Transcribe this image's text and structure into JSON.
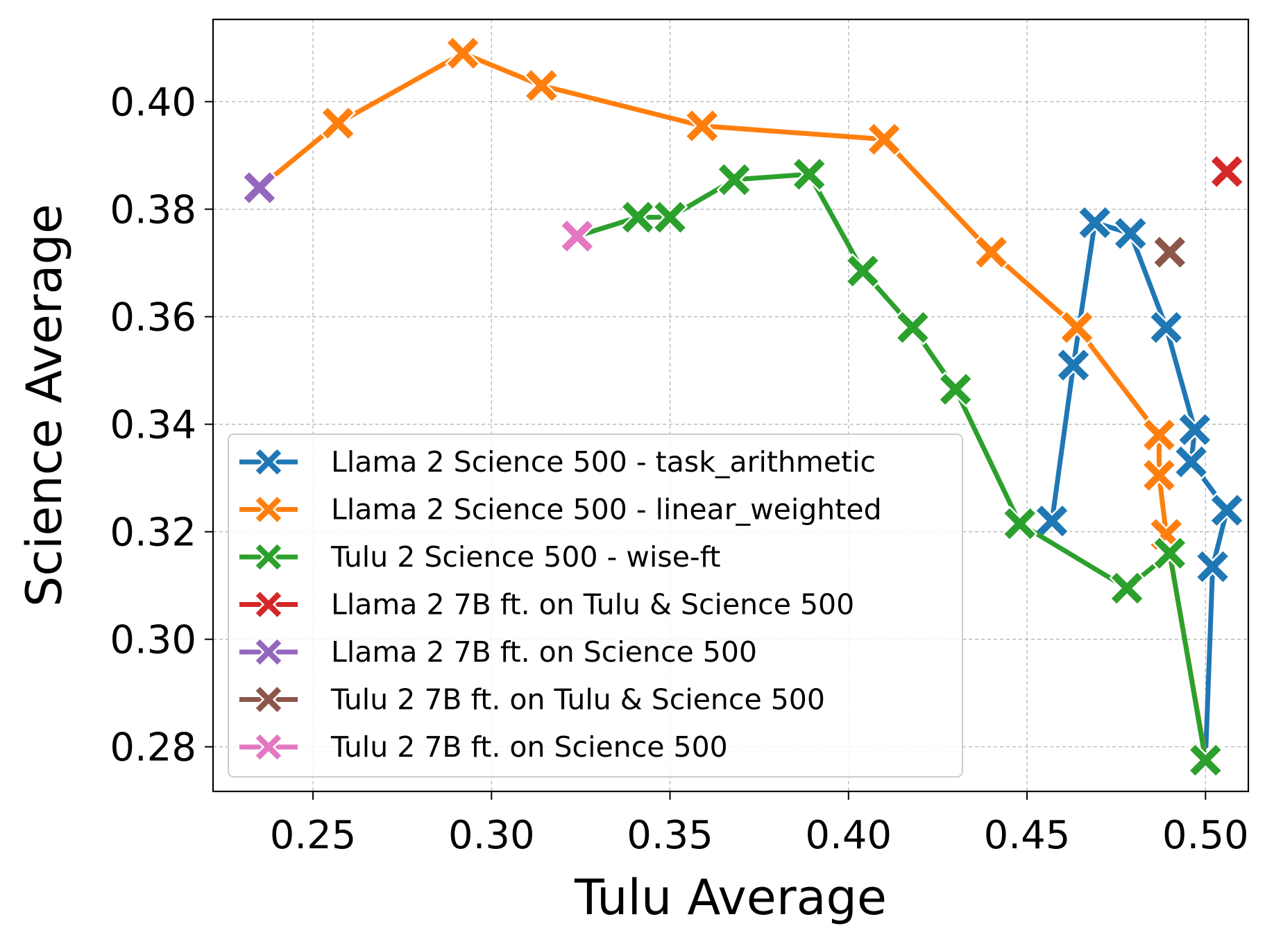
{
  "chart_data": {
    "type": "line",
    "title": "",
    "xlabel": "Tulu Average",
    "ylabel": "Science Average",
    "xlim": [
      0.222,
      0.512
    ],
    "ylim": [
      0.2717,
      0.4153
    ],
    "xticks": [
      0.25,
      0.3,
      0.35,
      0.4,
      0.45,
      0.5
    ],
    "xtick_labels": [
      "0.25",
      "0.30",
      "0.35",
      "0.40",
      "0.45",
      "0.50"
    ],
    "yticks": [
      0.28,
      0.3,
      0.32,
      0.34,
      0.36,
      0.38,
      0.4
    ],
    "ytick_labels": [
      "0.28",
      "0.30",
      "0.32",
      "0.34",
      "0.36",
      "0.38",
      "0.40"
    ],
    "grid": true,
    "legend_position": "lower-left",
    "marker": "X",
    "series": [
      {
        "name": "Llama 2 Science 500 - task_arithmetic",
        "color": "#1f77b4",
        "points": [
          [
            0.457,
            0.322
          ],
          [
            0.463,
            0.351
          ],
          [
            0.469,
            0.3775
          ],
          [
            0.479,
            0.3755
          ],
          [
            0.489,
            0.358
          ],
          [
            0.497,
            0.339
          ],
          [
            0.496,
            0.333
          ],
          [
            0.506,
            0.324
          ],
          [
            0.502,
            0.3135
          ],
          [
            0.5,
            0.278
          ]
        ]
      },
      {
        "name": "Llama 2 Science 500 - linear_weighted",
        "color": "#ff7f0e",
        "points": [
          [
            0.235,
            0.384
          ],
          [
            0.257,
            0.396
          ],
          [
            0.292,
            0.409
          ],
          [
            0.314,
            0.403
          ],
          [
            0.359,
            0.3955
          ],
          [
            0.41,
            0.393
          ],
          [
            0.44,
            0.372
          ],
          [
            0.464,
            0.358
          ],
          [
            0.487,
            0.338
          ],
          [
            0.487,
            0.3305
          ],
          [
            0.489,
            0.3195
          ],
          [
            0.5,
            0.278
          ]
        ]
      },
      {
        "name": "Tulu 2 Science 500 - wise-ft",
        "color": "#2ca02c",
        "points": [
          [
            0.324,
            0.375
          ],
          [
            0.341,
            0.3785
          ],
          [
            0.35,
            0.3785
          ],
          [
            0.368,
            0.3855
          ],
          [
            0.389,
            0.3865
          ],
          [
            0.404,
            0.3685
          ],
          [
            0.418,
            0.358
          ],
          [
            0.43,
            0.3465
          ],
          [
            0.448,
            0.3215
          ],
          [
            0.478,
            0.3095
          ],
          [
            0.49,
            0.316
          ],
          [
            0.5,
            0.2775
          ]
        ]
      },
      {
        "name": "Llama 2 7B ft. on Tulu & Science 500",
        "color": "#d62728",
        "points": [
          [
            0.506,
            0.387
          ]
        ]
      },
      {
        "name": "Llama 2 7B ft. on Science 500",
        "color": "#9467bd",
        "points": [
          [
            0.235,
            0.384
          ]
        ]
      },
      {
        "name": "Tulu 2 7B ft. on Tulu & Science 500",
        "color": "#8c564b",
        "points": [
          [
            0.49,
            0.372
          ]
        ]
      },
      {
        "name": "Tulu 2 7B ft. on Science 500",
        "color": "#e377c2",
        "points": [
          [
            0.324,
            0.375
          ]
        ]
      }
    ]
  }
}
